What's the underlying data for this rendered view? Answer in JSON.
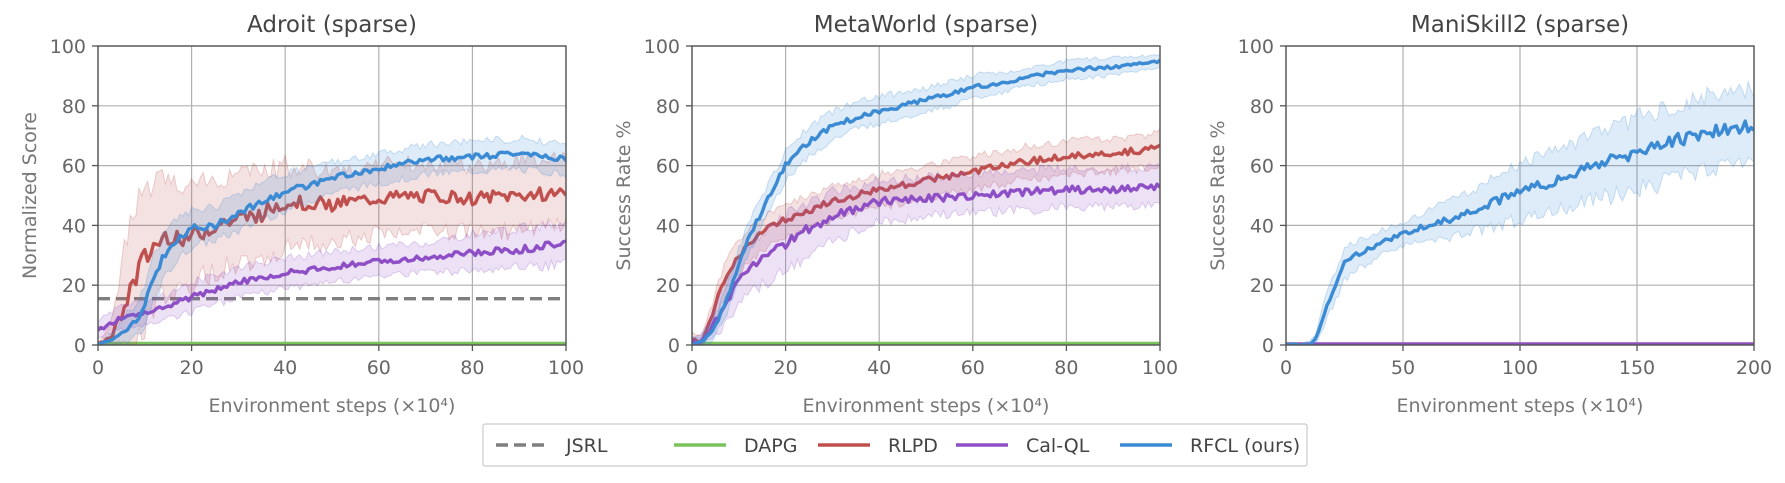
{
  "chart_data": [
    {
      "type": "line",
      "title": "Adroit (sparse)",
      "xlabel": "Environment steps (×10⁴)",
      "ylabel": "Normalized Score",
      "xlim": [
        0,
        100
      ],
      "ylim": [
        0,
        100
      ],
      "xticks": [
        "0",
        "20",
        "40",
        "60",
        "80",
        "100"
      ],
      "yticks": [
        "0",
        "20",
        "40",
        "60",
        "80",
        "100"
      ],
      "grid": true,
      "series": [
        {
          "name": "JSRL",
          "style": "dashed",
          "x": [
            0,
            100
          ],
          "y": [
            15.5,
            15.5
          ],
          "band": null
        },
        {
          "name": "DAPG",
          "x": [
            0,
            100
          ],
          "y": [
            0.5,
            0.5
          ],
          "band": null
        },
        {
          "name": "RLPD",
          "x": [
            0,
            3,
            6,
            9,
            12,
            15,
            20,
            25,
            30,
            35,
            40,
            50,
            60,
            70,
            80,
            90,
            100
          ],
          "y": [
            0,
            3,
            15,
            26,
            33,
            37,
            36,
            40,
            42,
            44,
            48,
            47,
            49,
            50,
            49,
            50,
            51
          ],
          "band": [
            [
              0,
              0
            ],
            [
              0,
              8
            ],
            [
              0,
              35
            ],
            [
              5,
              50
            ],
            [
              12,
              54
            ],
            [
              18,
              54
            ],
            [
              20,
              54
            ],
            [
              25,
              55
            ],
            [
              27,
              57
            ],
            [
              30,
              58
            ],
            [
              32,
              60
            ],
            [
              35,
              58
            ],
            [
              37,
              60
            ],
            [
              38,
              61
            ],
            [
              38,
              60
            ],
            [
              38,
              62
            ],
            [
              40,
              62
            ]
          ]
        },
        {
          "name": "Cal-QL",
          "x": [
            0,
            5,
            10,
            15,
            20,
            30,
            40,
            50,
            60,
            70,
            80,
            90,
            100
          ],
          "y": [
            5,
            9,
            11,
            13,
            16,
            21,
            24,
            26,
            28,
            29,
            31,
            32,
            34
          ],
          "band": [
            [
              2,
              8
            ],
            [
              5,
              13
            ],
            [
              7,
              15
            ],
            [
              9,
              17
            ],
            [
              11,
              21
            ],
            [
              16,
              26
            ],
            [
              19,
              29
            ],
            [
              21,
              31
            ],
            [
              23,
              33
            ],
            [
              24,
              34
            ],
            [
              25,
              37
            ],
            [
              26,
              39
            ],
            [
              27,
              41
            ]
          ]
        },
        {
          "name": "RFCL (ours)",
          "x": [
            0,
            3,
            6,
            9,
            12,
            15,
            20,
            25,
            30,
            35,
            40,
            50,
            60,
            70,
            80,
            90,
            100
          ],
          "y": [
            0,
            2,
            5,
            10,
            22,
            33,
            39,
            40,
            44,
            48,
            51,
            56,
            59,
            62,
            63,
            64,
            62
          ],
          "band": [
            [
              0,
              0
            ],
            [
              0,
              4
            ],
            [
              1,
              10
            ],
            [
              4,
              16
            ],
            [
              14,
              30
            ],
            [
              25,
              40
            ],
            [
              33,
              45
            ],
            [
              35,
              46
            ],
            [
              38,
              50
            ],
            [
              42,
              54
            ],
            [
              45,
              57
            ],
            [
              51,
              61
            ],
            [
              54,
              64
            ],
            [
              57,
              67
            ],
            [
              58,
              68
            ],
            [
              59,
              69
            ],
            [
              57,
              67
            ]
          ]
        }
      ]
    },
    {
      "type": "line",
      "title": "MetaWorld (sparse)",
      "xlabel": "Environment steps (×10⁴)",
      "ylabel": "Success Rate %",
      "xlim": [
        0,
        100
      ],
      "ylim": [
        0,
        100
      ],
      "xticks": [
        "0",
        "20",
        "40",
        "60",
        "80",
        "100"
      ],
      "yticks": [
        "0",
        "20",
        "40",
        "60",
        "80",
        "100"
      ],
      "grid": true,
      "series": [
        {
          "name": "DAPG",
          "x": [
            0,
            100
          ],
          "y": [
            0.5,
            0.5
          ],
          "band": null
        },
        {
          "name": "RLPD",
          "x": [
            0,
            2,
            4,
            6,
            8,
            10,
            12,
            15,
            20,
            25,
            30,
            40,
            50,
            60,
            70,
            80,
            90,
            100
          ],
          "y": [
            2,
            1,
            8,
            18,
            25,
            30,
            33,
            38,
            42,
            45,
            48,
            52,
            55,
            58,
            61,
            63,
            64,
            66
          ],
          "band": [
            [
              0,
              4
            ],
            [
              0,
              3
            ],
            [
              4,
              12
            ],
            [
              13,
              23
            ],
            [
              19,
              30
            ],
            [
              24,
              35
            ],
            [
              27,
              38
            ],
            [
              32,
              43
            ],
            [
              36,
              47
            ],
            [
              39,
              50
            ],
            [
              42,
              53
            ],
            [
              46,
              57
            ],
            [
              49,
              60
            ],
            [
              52,
              63
            ],
            [
              55,
              66
            ],
            [
              57,
              68
            ],
            [
              58,
              69
            ],
            [
              60,
              71
            ]
          ]
        },
        {
          "name": "Cal-QL",
          "x": [
            0,
            2,
            4,
            6,
            8,
            10,
            12,
            15,
            20,
            25,
            30,
            40,
            50,
            60,
            70,
            80,
            90,
            100
          ],
          "y": [
            1,
            1,
            5,
            11,
            16,
            21,
            25,
            29,
            34,
            39,
            43,
            48,
            49,
            50,
            51,
            52,
            52,
            53
          ],
          "band": [
            [
              0,
              3
            ],
            [
              0,
              3
            ],
            [
              2,
              9
            ],
            [
              5,
              17
            ],
            [
              9,
              23
            ],
            [
              13,
              29
            ],
            [
              17,
              33
            ],
            [
              20,
              38
            ],
            [
              25,
              43
            ],
            [
              30,
              48
            ],
            [
              35,
              51
            ],
            [
              41,
              55
            ],
            [
              43,
              56
            ],
            [
              44,
              57
            ],
            [
              45,
              58
            ],
            [
              46,
              59
            ],
            [
              46,
              59
            ],
            [
              47,
              59
            ]
          ]
        },
        {
          "name": "RFCL (ours)",
          "x": [
            0,
            2,
            4,
            6,
            8,
            10,
            12,
            15,
            20,
            25,
            30,
            35,
            40,
            50,
            60,
            70,
            80,
            90,
            100
          ],
          "y": [
            0,
            1,
            4,
            10,
            18,
            27,
            35,
            45,
            60,
            68,
            73,
            76,
            78,
            82,
            86,
            89,
            92,
            93,
            95
          ],
          "band": [
            [
              0,
              2
            ],
            [
              0,
              3
            ],
            [
              1,
              7
            ],
            [
              6,
              14
            ],
            [
              13,
              23
            ],
            [
              22,
              32
            ],
            [
              30,
              40
            ],
            [
              40,
              50
            ],
            [
              55,
              65
            ],
            [
              63,
              73
            ],
            [
              68,
              78
            ],
            [
              72,
              81
            ],
            [
              74,
              83
            ],
            [
              78,
              86
            ],
            [
              82,
              90
            ],
            [
              86,
              92
            ],
            [
              89,
              95
            ],
            [
              90,
              96
            ],
            [
              93,
              97
            ]
          ]
        }
      ]
    },
    {
      "type": "line",
      "title": "ManiSkill2 (sparse)",
      "xlabel": "Environment steps (×10⁴)",
      "ylabel": "Success Rate %",
      "xlim": [
        0,
        200
      ],
      "ylim": [
        0,
        100
      ],
      "xticks": [
        "0",
        "50",
        "100",
        "150",
        "200"
      ],
      "yticks": [
        "0",
        "20",
        "40",
        "60",
        "80",
        "100"
      ],
      "grid": true,
      "series": [
        {
          "name": "DAPG",
          "x": [
            0,
            200
          ],
          "y": [
            0.3,
            0.3
          ],
          "band": null
        },
        {
          "name": "RLPD",
          "x": [
            0,
            200
          ],
          "y": [
            0.3,
            0.3
          ],
          "band": null
        },
        {
          "name": "Cal-QL",
          "x": [
            0,
            200
          ],
          "y": [
            0.3,
            0.3
          ],
          "band": null
        },
        {
          "name": "RFCL (ours)",
          "x": [
            0,
            5,
            10,
            13,
            16,
            20,
            25,
            30,
            40,
            50,
            60,
            70,
            80,
            90,
            100,
            110,
            120,
            130,
            140,
            150,
            160,
            170,
            180,
            190,
            200
          ],
          "y": [
            0,
            0,
            0,
            2,
            10,
            18,
            27,
            30,
            34,
            37,
            40,
            42,
            45,
            48,
            51,
            54,
            56,
            59,
            62,
            64,
            67,
            69,
            71,
            72,
            74
          ],
          "band": [
            [
              0,
              0
            ],
            [
              0,
              0
            ],
            [
              0,
              1
            ],
            [
              0,
              4
            ],
            [
              6,
              14
            ],
            [
              13,
              23
            ],
            [
              22,
              32
            ],
            [
              25,
              35
            ],
            [
              30,
              38
            ],
            [
              33,
              41
            ],
            [
              35,
              45
            ],
            [
              36,
              48
            ],
            [
              38,
              52
            ],
            [
              40,
              56
            ],
            [
              42,
              60
            ],
            [
              44,
              64
            ],
            [
              46,
              66
            ],
            [
              48,
              70
            ],
            [
              50,
              73
            ],
            [
              52,
              76
            ],
            [
              54,
              79
            ],
            [
              56,
              81
            ],
            [
              58,
              83
            ],
            [
              60,
              84
            ],
            [
              62,
              86
            ]
          ]
        }
      ]
    }
  ],
  "legend": {
    "placement": "bottom-center",
    "items": [
      {
        "name": "JSRL",
        "color": "#7f7f7f",
        "style": "dashed"
      },
      {
        "name": "DAPG",
        "color": "#7ac35c",
        "style": "solid"
      },
      {
        "name": "RLPD",
        "color": "#c0504d",
        "style": "solid"
      },
      {
        "name": "Cal-QL",
        "color": "#8e4ec6",
        "style": "solid"
      },
      {
        "name": "RFCL (ours)",
        "color": "#3b8ad4",
        "style": "solid"
      }
    ]
  },
  "colors": {
    "JSRL": "#7f7f7f",
    "DAPG": "#7ac35c",
    "RLPD": "#c0504d",
    "Cal-QL": "#8e4ec6",
    "RFCL (ours)": "#3b8ad4",
    "grid": "#b0b0b0",
    "axis": "#555555"
  }
}
